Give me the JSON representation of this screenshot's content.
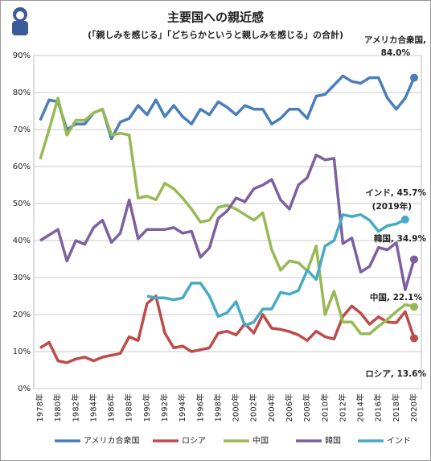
{
  "chart_data": {
    "type": "line",
    "title": "主要国への親近感",
    "subtitle": "(「親しみを感じる」「どちらかというと親しみを感じる」の合計)",
    "categories": [
      "1978年",
      null,
      "1980年",
      null,
      "1982年",
      null,
      "1984年",
      null,
      "1986年",
      null,
      "1988年",
      null,
      "1990年",
      null,
      "1992年",
      null,
      "1994年",
      null,
      "1996年",
      null,
      "1998年",
      null,
      "2000年",
      null,
      "2002年",
      null,
      "2004年",
      null,
      "2006年",
      null,
      "2008年",
      null,
      "2010年",
      null,
      "2012年",
      null,
      "2014年",
      null,
      "2016年",
      null,
      "2018年",
      null,
      "2020年"
    ],
    "series": [
      {
        "name": "アメリカ合衆国",
        "color": "#4a7ebb",
        "values": [
          72.5,
          78,
          77.5,
          70,
          71.5,
          71.5,
          74.5,
          75.5,
          67.5,
          72,
          73,
          76.5,
          74,
          78,
          73.5,
          76.5,
          73.5,
          71.5,
          75.5,
          74,
          77.5,
          76,
          74,
          76.5,
          75.5,
          75.5,
          71.5,
          73,
          75.5,
          75.5,
          73,
          79,
          79.5,
          82,
          84.5,
          83,
          82.5,
          84,
          84,
          78.5,
          75.5,
          78.5,
          84.0
        ]
      },
      {
        "name": "ロシア",
        "color": "#be4b48",
        "values": [
          11,
          12.5,
          7.5,
          7,
          8,
          8.5,
          7.5,
          8.5,
          9,
          9.5,
          14,
          13,
          23,
          25,
          15,
          11,
          11.5,
          10,
          10.5,
          11,
          15,
          15.5,
          14.5,
          17.5,
          15,
          20,
          16.3,
          16,
          15.4,
          14.5,
          13,
          15.5,
          14,
          13.4,
          19.5,
          22.3,
          20.4,
          17.4,
          19.4,
          18,
          17.8,
          20.8,
          13.6
        ]
      },
      {
        "name": "中国",
        "color": "#98b954",
        "values": [
          62,
          70,
          78.5,
          68.5,
          72.5,
          72.5,
          74.5,
          75.5,
          68.5,
          69,
          68.5,
          51.5,
          52,
          51,
          55.5,
          54,
          51.5,
          48.5,
          45,
          45.5,
          49,
          49.5,
          48.5,
          47,
          45.5,
          47.5,
          37.5,
          32,
          34.5,
          34,
          31.8,
          38.5,
          20,
          26.3,
          18,
          18,
          14.8,
          14.8,
          16.8,
          18.7,
          20.8,
          22.7,
          22.1
        ]
      },
      {
        "name": "韓国",
        "color": "#7d60a0",
        "values": [
          40,
          41.5,
          43,
          34.5,
          40,
          39,
          43.5,
          45.5,
          39.5,
          42,
          51,
          40.5,
          43,
          43,
          43,
          43.5,
          42,
          42.5,
          35.5,
          38,
          46,
          48,
          51.5,
          50.5,
          54,
          55,
          56.5,
          51,
          48.5,
          55,
          57,
          63.1,
          61.8,
          62.2,
          39.2,
          40.7,
          31.5,
          33,
          38.1,
          37.5,
          39.4,
          26.7,
          34.9
        ]
      },
      {
        "name": "インド",
        "color": "#46aac5",
        "values": [
          null,
          null,
          null,
          null,
          null,
          null,
          null,
          null,
          null,
          null,
          null,
          null,
          25,
          24.5,
          24.5,
          24,
          24.5,
          28.5,
          28.5,
          25,
          19.5,
          20.5,
          23.5,
          17,
          18,
          21.5,
          21.5,
          26,
          25.5,
          26.5,
          32,
          29.5,
          38.5,
          40,
          47,
          46.5,
          47,
          45.5,
          42.5,
          44,
          44.5,
          45.7,
          null
        ]
      }
    ],
    "annotations": [
      "アメリカ合衆国,",
      "84.0%",
      "インド, 45.7%",
      "(2019年)",
      "韓国, 34.9%",
      "中国, 22.1%",
      "ロシア, 13.6%"
    ],
    "ylim": [
      0,
      90
    ],
    "yticks": [
      {
        "value": 0,
        "label": "0%"
      },
      {
        "value": 10,
        "label": "10%"
      },
      {
        "value": 20,
        "label": "20%"
      },
      {
        "value": 30,
        "label": "30%"
      },
      {
        "value": 40,
        "label": "40%"
      },
      {
        "value": 50,
        "label": "50%"
      },
      {
        "value": 60,
        "label": "60%"
      },
      {
        "value": 70,
        "label": "70%"
      },
      {
        "value": 80,
        "label": "80%"
      },
      {
        "value": 90,
        "label": "90%"
      }
    ],
    "grid": true,
    "legend": "bottom"
  }
}
